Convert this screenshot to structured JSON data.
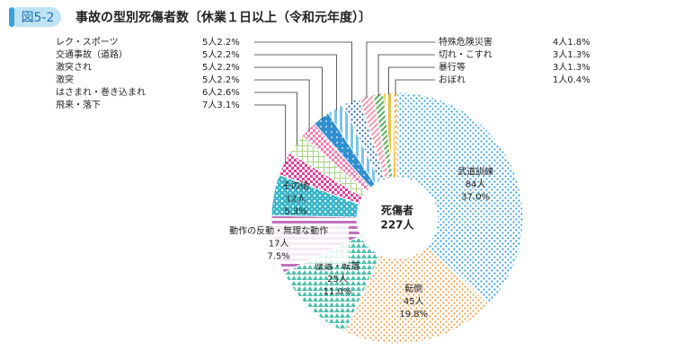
{
  "figure_label": "図5-2",
  "chart_data": {
    "type": "donut",
    "title": "事故の型別死傷者数〔休業１日以上（令和元年度）〕",
    "center": [
      "死傷者",
      "227人"
    ],
    "categories": [
      "武道訓練",
      "転倒",
      "墜落・転落",
      "動作の反動・無理な動作",
      "その他",
      "飛来・落下",
      "はさまれ・巻き込まれ",
      "激突",
      "激突され",
      "交通事故（道路）",
      "レク・スポーツ",
      "特殊危険災害",
      "切れ・こすれ",
      "暴行等",
      "おぼれ"
    ],
    "values": [
      84,
      45,
      25,
      17,
      12,
      7,
      6,
      5,
      5,
      5,
      5,
      4,
      3,
      3,
      1
    ],
    "value_labels": [
      "84人",
      "45人",
      "25人",
      "17人",
      "12人",
      "7人",
      "6人",
      "5人",
      "5人",
      "5人",
      "5人",
      "4人",
      "3人",
      "3人",
      "1人"
    ],
    "percents": [
      37.0,
      19.8,
      11.0,
      7.5,
      5.3,
      3.1,
      2.6,
      2.2,
      2.2,
      2.2,
      2.2,
      1.8,
      1.3,
      1.3,
      0.4
    ],
    "percent_labels": [
      "37.0%",
      "19.8%",
      "11.0%",
      "7.5%",
      "5.3%",
      "3.1%",
      "2.6%",
      "2.2%",
      "2.2%",
      "2.2%",
      "2.2%",
      "1.8%",
      "1.3%",
      "1.3%",
      "0.4%"
    ],
    "colors": [
      "#3a9fd8",
      "#f0a050",
      "#4cbfaa",
      "#c070c0",
      "#38b4c8",
      "#e0409a",
      "#a8d488",
      "#f07cb0",
      "#3090d0",
      "#7cc4e8",
      "#20609e",
      "#f09cb0",
      "#5cae5c",
      "#eec040",
      "#f0a030"
    ]
  }
}
